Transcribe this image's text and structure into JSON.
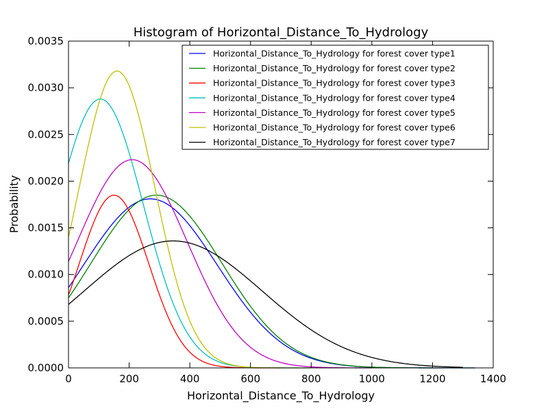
{
  "chart_data": {
    "type": "line",
    "title": "Histogram of Horizontal_Distance_To_Hydrology",
    "xlabel": "Horizontal_Distance_To_Hydrology",
    "ylabel": "Probability",
    "xlim": [
      0,
      1400
    ],
    "ylim": [
      0,
      0.0035
    ],
    "xticks": [
      0,
      200,
      400,
      600,
      800,
      1000,
      1200,
      1400
    ],
    "yticks": [
      0,
      0.0005,
      0.001,
      0.0015,
      0.002,
      0.0025,
      0.003,
      0.0035
    ],
    "xtick_labels": [
      "0",
      "200",
      "400",
      "600",
      "800",
      "1000",
      "1200",
      "1400"
    ],
    "ytick_labels": [
      "0.0000",
      "0.0005",
      "0.0010",
      "0.0015",
      "0.0020",
      "0.0025",
      "0.0030",
      "0.0035"
    ],
    "grid": false,
    "legend_position": "top-right",
    "series": [
      {
        "name": "Horizontal_Distance_To_Hydrology for forest cover type1",
        "color": "#0000ff",
        "mean": 270,
        "peak": 0.00181,
        "x_range": [
          0,
          1340
        ],
        "points": [
          [
            0,
            0.00086
          ],
          [
            100,
            0.00128
          ],
          [
            200,
            0.00168
          ],
          [
            270,
            0.00181
          ],
          [
            400,
            0.00155
          ],
          [
            500,
            0.00107
          ],
          [
            600,
            0.00062
          ],
          [
            700,
            0.00029
          ],
          [
            800,
            0.00011
          ],
          [
            1000,
            1e-05
          ],
          [
            1340,
            0.0
          ]
        ]
      },
      {
        "name": "Horizontal_Distance_To_Hydrology for forest cover type2",
        "color": "#008000",
        "mean": 290,
        "peak": 0.00185,
        "x_range": [
          0,
          1340
        ],
        "points": [
          [
            0,
            0.00075
          ],
          [
            100,
            0.00116
          ],
          [
            200,
            0.00162
          ],
          [
            290,
            0.00185
          ],
          [
            400,
            0.00163
          ],
          [
            500,
            0.00115
          ],
          [
            600,
            0.00066
          ],
          [
            700,
            0.00031
          ],
          [
            800,
            0.00012
          ],
          [
            1000,
            1e-05
          ],
          [
            1340,
            0.0
          ]
        ]
      },
      {
        "name": "Horizontal_Distance_To_Hydrology for forest cover type3",
        "color": "#ff0000",
        "mean": 150,
        "peak": 0.00185,
        "x_range": [
          0,
          700
        ],
        "points": [
          [
            0,
            0.00078
          ],
          [
            100,
            0.00168
          ],
          [
            150,
            0.00185
          ],
          [
            200,
            0.00168
          ],
          [
            300,
            0.00086
          ],
          [
            400,
            0.00022
          ],
          [
            500,
            3e-05
          ],
          [
            700,
            0.0
          ]
        ]
      },
      {
        "name": "Horizontal_Distance_To_Hydrology for forest cover type4",
        "color": "#00bfbf",
        "mean": 105,
        "peak": 0.00288,
        "x_range": [
          0,
          800
        ],
        "points": [
          [
            0,
            0.00219
          ],
          [
            105,
            0.00288
          ],
          [
            200,
            0.00225
          ],
          [
            300,
            0.00105
          ],
          [
            400,
            0.0003
          ],
          [
            500,
            5e-05
          ],
          [
            800,
            0.0
          ]
        ]
      },
      {
        "name": "Horizontal_Distance_To_Hydrology for forest cover type5",
        "color": "#bf00bf",
        "mean": 210,
        "peak": 0.00223,
        "x_range": [
          0,
          1000
        ],
        "points": [
          [
            0,
            0.00114
          ],
          [
            100,
            0.00192
          ],
          [
            210,
            0.00223
          ],
          [
            300,
            0.00192
          ],
          [
            400,
            0.00122
          ],
          [
            500,
            0.00058
          ],
          [
            600,
            0.0002
          ],
          [
            800,
            1e-05
          ],
          [
            1000,
            0.0
          ]
        ]
      },
      {
        "name": "Horizontal_Distance_To_Hydrology for forest cover type6",
        "color": "#bfbf00",
        "mean": 160,
        "peak": 0.00318,
        "x_range": [
          0,
          800
        ],
        "points": [
          [
            0,
            0.0014
          ],
          [
            100,
            0.00287
          ],
          [
            160,
            0.00318
          ],
          [
            250,
            0.00252
          ],
          [
            350,
            0.0011
          ],
          [
            450,
            0.00026
          ],
          [
            600,
            1e-05
          ],
          [
            800,
            0.0
          ]
        ]
      },
      {
        "name": "Horizontal_Distance_To_Hydrology for forest cover type7",
        "color": "#000000",
        "mean": 345,
        "peak": 0.00136,
        "x_range": [
          0,
          1300
        ],
        "points": [
          [
            0,
            0.00068
          ],
          [
            100,
            0.00097
          ],
          [
            200,
            0.00123
          ],
          [
            345,
            0.00136
          ],
          [
            500,
            0.00112
          ],
          [
            600,
            0.00085
          ],
          [
            700,
            0.00057
          ],
          [
            800,
            0.00034
          ],
          [
            1000,
            9e-05
          ],
          [
            1200,
            2e-05
          ],
          [
            1300,
            1e-05
          ]
        ]
      }
    ]
  }
}
